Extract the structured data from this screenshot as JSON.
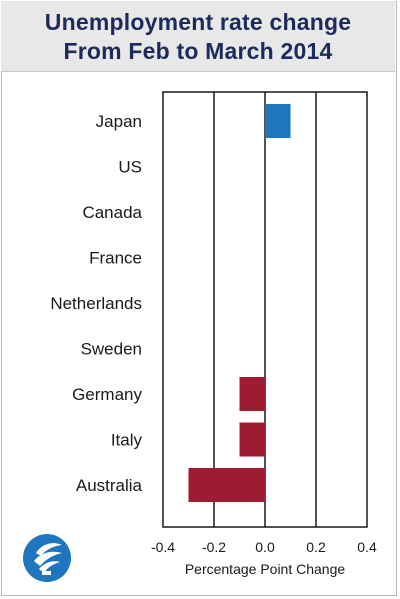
{
  "title_lines": [
    "Unemployment rate change",
    "From Feb to March 2014"
  ],
  "chart_data": {
    "type": "bar",
    "orientation": "horizontal",
    "title": "Unemployment rate change From Feb to March 2014",
    "categories": [
      "Japan",
      "US",
      "Canada",
      "France",
      "Netherlands",
      "Sweden",
      "Germany",
      "Italy",
      "Australia"
    ],
    "values": [
      0.1,
      0.0,
      0.0,
      0.0,
      0.0,
      0.0,
      -0.1,
      -0.1,
      -0.3
    ],
    "xlabel": "Percentage Point Change",
    "ylabel": "",
    "xlim": [
      -0.4,
      0.4
    ],
    "xticks": [
      -0.4,
      -0.2,
      0.0,
      0.2,
      0.4
    ],
    "xtick_labels": [
      "-0.4",
      "-0.2",
      "0.0",
      "0.2",
      "0.4"
    ],
    "grid": "vertical",
    "legend": "none",
    "colors": {
      "positive": "#1f76bf",
      "negative": "#9e1b32",
      "title": "#1d2a5c",
      "header_bg": "#e8e8e8"
    }
  },
  "logo_icon": "torch-globe-icon"
}
